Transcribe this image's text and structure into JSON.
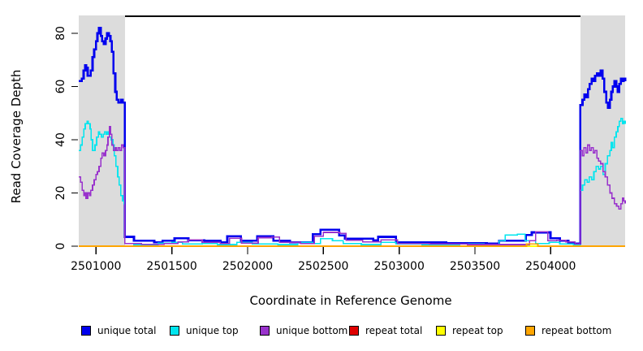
{
  "chart_data": {
    "type": "line",
    "title": "",
    "xlabel": "Coordinate in Reference Genome",
    "ylabel": "Read Coverage Depth",
    "xlim": [
      2500886,
      2504491
    ],
    "ylim": [
      0,
      86.4
    ],
    "x_ticks": [
      2501000,
      2501500,
      2502000,
      2502500,
      2503000,
      2503500,
      2504000
    ],
    "y_ticks": [
      0,
      20,
      40,
      60,
      80
    ],
    "grid": false,
    "step": true,
    "legend_position": "bottom",
    "background": "#ffffff",
    "box_top_color": "#000000",
    "shaded_regions": [
      {
        "from": 2500886,
        "to": 2501191,
        "color": "#dcdcdc"
      },
      {
        "from": 2504196,
        "to": 2504491,
        "color": "#dcdcdc"
      }
    ],
    "series": [
      {
        "name": "unique total",
        "color": "#0000ee",
        "width": 2.6,
        "points": [
          [
            2500886,
            62
          ],
          [
            2500907,
            63
          ],
          [
            2500918,
            66
          ],
          [
            2500929,
            68
          ],
          [
            2500934,
            67
          ],
          [
            2500945,
            64
          ],
          [
            2500956,
            64
          ],
          [
            2500966,
            66
          ],
          [
            2500977,
            71
          ],
          [
            2500988,
            74
          ],
          [
            2500999,
            77
          ],
          [
            2501009,
            80
          ],
          [
            2501020,
            82
          ],
          [
            2501031,
            79
          ],
          [
            2501041,
            77
          ],
          [
            2501052,
            76
          ],
          [
            2501063,
            78
          ],
          [
            2501073,
            80
          ],
          [
            2501084,
            79
          ],
          [
            2501095,
            77
          ],
          [
            2501105,
            73
          ],
          [
            2501116,
            65
          ],
          [
            2501127,
            58
          ],
          [
            2501137,
            55
          ],
          [
            2501148,
            54
          ],
          [
            2501164,
            55
          ],
          [
            2501175,
            54
          ],
          [
            2501185,
            54
          ],
          [
            2501191,
            3.5
          ],
          [
            2501250,
            2
          ],
          [
            2501384,
            1.5
          ],
          [
            2501438,
            2
          ],
          [
            2501518,
            3
          ],
          [
            2501609,
            2.2
          ],
          [
            2501716,
            2
          ],
          [
            2501823,
            1.5
          ],
          [
            2501866,
            3.8
          ],
          [
            2501957,
            2
          ],
          [
            2502064,
            3.8
          ],
          [
            2502171,
            2
          ],
          [
            2502279,
            1.5
          ],
          [
            2502429,
            4.5
          ],
          [
            2502482,
            6.2
          ],
          [
            2502605,
            4
          ],
          [
            2502643,
            2.8
          ],
          [
            2502830,
            2.2
          ],
          [
            2502862,
            3.5
          ],
          [
            2502980,
            1.5
          ],
          [
            2503312,
            1.2
          ],
          [
            2503580,
            1
          ],
          [
            2503660,
            2
          ],
          [
            2503837,
            4.2
          ],
          [
            2503875,
            5.2
          ],
          [
            2503998,
            3
          ],
          [
            2504062,
            2
          ],
          [
            2504116,
            1
          ],
          [
            2504191,
            1
          ],
          [
            2504196,
            53
          ],
          [
            2504210,
            55
          ],
          [
            2504222,
            57
          ],
          [
            2504234,
            56
          ],
          [
            2504245,
            59
          ],
          [
            2504257,
            61
          ],
          [
            2504269,
            63
          ],
          [
            2504281,
            62
          ],
          [
            2504293,
            64
          ],
          [
            2504305,
            65
          ],
          [
            2504317,
            64
          ],
          [
            2504330,
            66
          ],
          [
            2504342,
            63
          ],
          [
            2504354,
            58
          ],
          [
            2504366,
            54
          ],
          [
            2504378,
            52
          ],
          [
            2504390,
            55
          ],
          [
            2504400,
            58
          ],
          [
            2504410,
            60
          ],
          [
            2504420,
            62
          ],
          [
            2504432,
            60
          ],
          [
            2504443,
            58
          ],
          [
            2504453,
            61
          ],
          [
            2504463,
            63
          ],
          [
            2504473,
            62
          ],
          [
            2504482,
            63
          ],
          [
            2504491,
            62
          ]
        ]
      },
      {
        "name": "unique top",
        "color": "#00e5ee",
        "width": 1.6,
        "points": [
          [
            2500886,
            36
          ],
          [
            2500897,
            38
          ],
          [
            2500908,
            41
          ],
          [
            2500919,
            44
          ],
          [
            2500929,
            46
          ],
          [
            2500940,
            47
          ],
          [
            2500950,
            46
          ],
          [
            2500961,
            44
          ],
          [
            2500967,
            40
          ],
          [
            2500977,
            36
          ],
          [
            2500993,
            38
          ],
          [
            2501004,
            41
          ],
          [
            2501015,
            43
          ],
          [
            2501025,
            42
          ],
          [
            2501036,
            41
          ],
          [
            2501047,
            42
          ],
          [
            2501057,
            43
          ],
          [
            2501068,
            42
          ],
          [
            2501079,
            43
          ],
          [
            2501089,
            41
          ],
          [
            2501100,
            40
          ],
          [
            2501111,
            38
          ],
          [
            2501121,
            34
          ],
          [
            2501132,
            30
          ],
          [
            2501143,
            26
          ],
          [
            2501153,
            23
          ],
          [
            2501164,
            19
          ],
          [
            2501175,
            17
          ],
          [
            2501185,
            16
          ],
          [
            2501191,
            1
          ],
          [
            2501250,
            0.6
          ],
          [
            2501410,
            1.2
          ],
          [
            2501500,
            1.5
          ],
          [
            2501570,
            0.8
          ],
          [
            2501700,
            1
          ],
          [
            2501800,
            0.6
          ],
          [
            2501930,
            1.5
          ],
          [
            2502030,
            0.8
          ],
          [
            2502200,
            0.6
          ],
          [
            2502330,
            1.4
          ],
          [
            2502429,
            1
          ],
          [
            2502482,
            2.8
          ],
          [
            2502560,
            2
          ],
          [
            2502630,
            1
          ],
          [
            2502750,
            0.6
          ],
          [
            2502880,
            1.4
          ],
          [
            2502980,
            0.8
          ],
          [
            2503150,
            0.5
          ],
          [
            2503400,
            0.8
          ],
          [
            2503560,
            0.5
          ],
          [
            2503660,
            2
          ],
          [
            2503700,
            4.2
          ],
          [
            2503780,
            4.5
          ],
          [
            2503830,
            2
          ],
          [
            2503900,
            1
          ],
          [
            2503990,
            1.4
          ],
          [
            2504060,
            0.8
          ],
          [
            2504150,
            0.5
          ],
          [
            2504191,
            0.5
          ],
          [
            2504196,
            21
          ],
          [
            2504210,
            23
          ],
          [
            2504225,
            25
          ],
          [
            2504240,
            24
          ],
          [
            2504255,
            26
          ],
          [
            2504270,
            25
          ],
          [
            2504285,
            28
          ],
          [
            2504300,
            30
          ],
          [
            2504315,
            29
          ],
          [
            2504330,
            30
          ],
          [
            2504345,
            27
          ],
          [
            2504360,
            31
          ],
          [
            2504375,
            34
          ],
          [
            2504390,
            36
          ],
          [
            2504400,
            39
          ],
          [
            2504410,
            37
          ],
          [
            2504420,
            41
          ],
          [
            2504432,
            43
          ],
          [
            2504443,
            45
          ],
          [
            2504453,
            47
          ],
          [
            2504463,
            48
          ],
          [
            2504473,
            46
          ],
          [
            2504482,
            47
          ],
          [
            2504491,
            46
          ]
        ]
      },
      {
        "name": "unique bottom",
        "color": "#9932cc",
        "width": 1.6,
        "points": [
          [
            2500886,
            26
          ],
          [
            2500897,
            24
          ],
          [
            2500908,
            21
          ],
          [
            2500919,
            19
          ],
          [
            2500929,
            20
          ],
          [
            2500934,
            18
          ],
          [
            2500945,
            20
          ],
          [
            2500956,
            19
          ],
          [
            2500966,
            21
          ],
          [
            2500977,
            23
          ],
          [
            2500988,
            25
          ],
          [
            2500999,
            27
          ],
          [
            2501009,
            28
          ],
          [
            2501020,
            30
          ],
          [
            2501031,
            33
          ],
          [
            2501041,
            35
          ],
          [
            2501052,
            34
          ],
          [
            2501063,
            36
          ],
          [
            2501073,
            38
          ],
          [
            2501079,
            41
          ],
          [
            2501089,
            45
          ],
          [
            2501095,
            42
          ],
          [
            2501105,
            38
          ],
          [
            2501116,
            36
          ],
          [
            2501127,
            37
          ],
          [
            2501137,
            36
          ],
          [
            2501148,
            37
          ],
          [
            2501158,
            36
          ],
          [
            2501169,
            38
          ],
          [
            2501180,
            37
          ],
          [
            2501191,
            1
          ],
          [
            2501300,
            0.7
          ],
          [
            2501450,
            1
          ],
          [
            2501540,
            1.6
          ],
          [
            2501609,
            2.4
          ],
          [
            2501700,
            1.4
          ],
          [
            2501820,
            1
          ],
          [
            2501880,
            3
          ],
          [
            2501960,
            1.2
          ],
          [
            2502070,
            3.2
          ],
          [
            2502160,
            3.4
          ],
          [
            2502210,
            1.4
          ],
          [
            2502350,
            1
          ],
          [
            2502440,
            3.8
          ],
          [
            2502500,
            5.2
          ],
          [
            2502610,
            4.8
          ],
          [
            2502650,
            2.2
          ],
          [
            2502760,
            1.6
          ],
          [
            2502880,
            2.4
          ],
          [
            2502990,
            1
          ],
          [
            2503200,
            0.8
          ],
          [
            2503450,
            0.6
          ],
          [
            2503650,
            0.6
          ],
          [
            2503860,
            2
          ],
          [
            2503900,
            5.4
          ],
          [
            2503980,
            2
          ],
          [
            2504040,
            2.2
          ],
          [
            2504100,
            1.6
          ],
          [
            2504160,
            0.8
          ],
          [
            2504191,
            0.8
          ],
          [
            2504196,
            36
          ],
          [
            2504208,
            34
          ],
          [
            2504220,
            37
          ],
          [
            2504232,
            35
          ],
          [
            2504244,
            38
          ],
          [
            2504256,
            36
          ],
          [
            2504268,
            37
          ],
          [
            2504280,
            35
          ],
          [
            2504292,
            36
          ],
          [
            2504304,
            33
          ],
          [
            2504316,
            32
          ],
          [
            2504330,
            31
          ],
          [
            2504345,
            28
          ],
          [
            2504360,
            26
          ],
          [
            2504375,
            23
          ],
          [
            2504390,
            20
          ],
          [
            2504405,
            18
          ],
          [
            2504420,
            16
          ],
          [
            2504435,
            15
          ],
          [
            2504450,
            14
          ],
          [
            2504463,
            16
          ],
          [
            2504473,
            18
          ],
          [
            2504482,
            17
          ],
          [
            2504491,
            16
          ]
        ]
      },
      {
        "name": "repeat total",
        "color": "#e00000",
        "width": 1.6,
        "points": [
          [
            2500886,
            0
          ],
          [
            2504491,
            0
          ]
        ]
      },
      {
        "name": "repeat top",
        "color": "#ffff00",
        "width": 1.6,
        "points": [
          [
            2500886,
            0
          ],
          [
            2504491,
            0
          ]
        ]
      },
      {
        "name": "repeat bottom",
        "color": "#ffa500",
        "width": 1.6,
        "points": [
          [
            2500886,
            0
          ],
          [
            2503830,
            0
          ],
          [
            2503840,
            0.8
          ],
          [
            2503905,
            0.8
          ],
          [
            2503915,
            0
          ],
          [
            2504491,
            0
          ]
        ]
      }
    ],
    "legend_entries": [
      {
        "label": "unique total",
        "color": "#0000ee"
      },
      {
        "label": "unique top",
        "color": "#00e5ee"
      },
      {
        "label": "unique bottom",
        "color": "#9932cc"
      },
      {
        "label": "repeat total",
        "color": "#e00000"
      },
      {
        "label": "repeat top",
        "color": "#ffff00"
      },
      {
        "label": "repeat bottom",
        "color": "#ffa500"
      }
    ]
  }
}
